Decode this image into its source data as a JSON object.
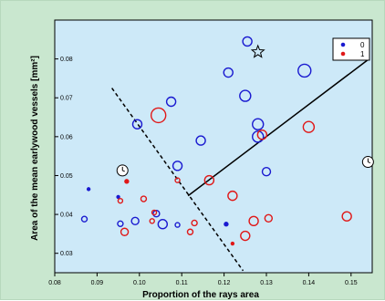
{
  "chart_data": {
    "type": "scatter",
    "xlabel": "Proportion of the rays area",
    "ylabel": "Area of the mean earlywood vessels [mm²]",
    "xlim": [
      0.08,
      0.155
    ],
    "ylim": [
      0.025,
      0.09
    ],
    "x_ticks": [
      0.08,
      0.09,
      0.1,
      0.11,
      0.12,
      0.13,
      0.14,
      0.15
    ],
    "x_tick_labels": [
      "0.08",
      "0.09",
      "0.10",
      "0.11",
      "0.12",
      "0.13",
      "0.14",
      "0.15"
    ],
    "y_ticks": [
      0.03,
      0.04,
      0.05,
      0.06,
      0.07,
      0.08
    ],
    "y_tick_labels": [
      "0.03",
      "0.04",
      "0.05",
      "0.06",
      "0.07",
      "0.08"
    ],
    "grid": false,
    "legend": {
      "placement": "top-right",
      "entries": [
        {
          "label": "0",
          "color": "#1a1ad0"
        },
        {
          "label": "1",
          "color": "#e01818"
        }
      ]
    },
    "series": [
      {
        "name": "0",
        "color": "#1a1ad0",
        "points": [
          {
            "x": 0.1255,
            "y": 0.0845,
            "size": 5
          },
          {
            "x": 0.139,
            "y": 0.077,
            "size": 7
          },
          {
            "x": 0.121,
            "y": 0.0765,
            "size": 5
          },
          {
            "x": 0.125,
            "y": 0.0705,
            "size": 6
          },
          {
            "x": 0.1075,
            "y": 0.069,
            "size": 5
          },
          {
            "x": 0.128,
            "y": 0.0632,
            "size": 6
          },
          {
            "x": 0.0995,
            "y": 0.0632,
            "size": 5
          },
          {
            "x": 0.128,
            "y": 0.06,
            "size": 6
          },
          {
            "x": 0.1145,
            "y": 0.059,
            "size": 5
          },
          {
            "x": 0.109,
            "y": 0.0525,
            "size": 5
          },
          {
            "x": 0.13,
            "y": 0.051,
            "size": 4.5
          },
          {
            "x": 0.088,
            "y": 0.0465,
            "size": 1.5
          },
          {
            "x": 0.095,
            "y": 0.0445,
            "size": 1.5
          },
          {
            "x": 0.104,
            "y": 0.0402,
            "size": 3.5
          },
          {
            "x": 0.087,
            "y": 0.0388,
            "size": 3
          },
          {
            "x": 0.099,
            "y": 0.0383,
            "size": 4
          },
          {
            "x": 0.0955,
            "y": 0.0376,
            "size": 3
          },
          {
            "x": 0.1055,
            "y": 0.0375,
            "size": 5
          },
          {
            "x": 0.109,
            "y": 0.0373,
            "size": 2.5
          },
          {
            "x": 0.1205,
            "y": 0.0375,
            "size": 2
          }
        ]
      },
      {
        "name": "1",
        "color": "#e01818",
        "points": [
          {
            "x": 0.1045,
            "y": 0.0655,
            "size": 8
          },
          {
            "x": 0.14,
            "y": 0.0625,
            "size": 6
          },
          {
            "x": 0.129,
            "y": 0.0605,
            "size": 5
          },
          {
            "x": 0.109,
            "y": 0.0488,
            "size": 2.5
          },
          {
            "x": 0.097,
            "y": 0.0485,
            "size": 2
          },
          {
            "x": 0.1165,
            "y": 0.0488,
            "size": 5
          },
          {
            "x": 0.122,
            "y": 0.0448,
            "size": 5
          },
          {
            "x": 0.0955,
            "y": 0.0435,
            "size": 2.5
          },
          {
            "x": 0.101,
            "y": 0.044,
            "size": 3
          },
          {
            "x": 0.1035,
            "y": 0.0405,
            "size": 2.5
          },
          {
            "x": 0.103,
            "y": 0.0383,
            "size": 2.5
          },
          {
            "x": 0.113,
            "y": 0.0378,
            "size": 3
          },
          {
            "x": 0.0965,
            "y": 0.0355,
            "size": 4
          },
          {
            "x": 0.112,
            "y": 0.0355,
            "size": 3
          },
          {
            "x": 0.127,
            "y": 0.0383,
            "size": 5
          },
          {
            "x": 0.1305,
            "y": 0.039,
            "size": 4
          },
          {
            "x": 0.125,
            "y": 0.0345,
            "size": 5
          },
          {
            "x": 0.149,
            "y": 0.0395,
            "size": 5
          },
          {
            "x": 0.122,
            "y": 0.0325,
            "size": 1.5
          }
        ]
      }
    ],
    "lines": [
      {
        "style": "solid",
        "color": "#000000",
        "from": [
          0.1115,
          0.0448
        ],
        "to": [
          0.154,
          0.0798
        ]
      },
      {
        "style": "dashed",
        "color": "#000000",
        "from": [
          0.0935,
          0.0725
        ],
        "to": [
          0.1245,
          0.0255
        ]
      }
    ],
    "annotations": [
      {
        "kind": "star-outline",
        "x": 0.128,
        "y": 0.0818
      },
      {
        "kind": "clock",
        "x": 0.096,
        "y": 0.0513
      },
      {
        "kind": "clock",
        "x": 0.154,
        "y": 0.0535
      }
    ]
  }
}
